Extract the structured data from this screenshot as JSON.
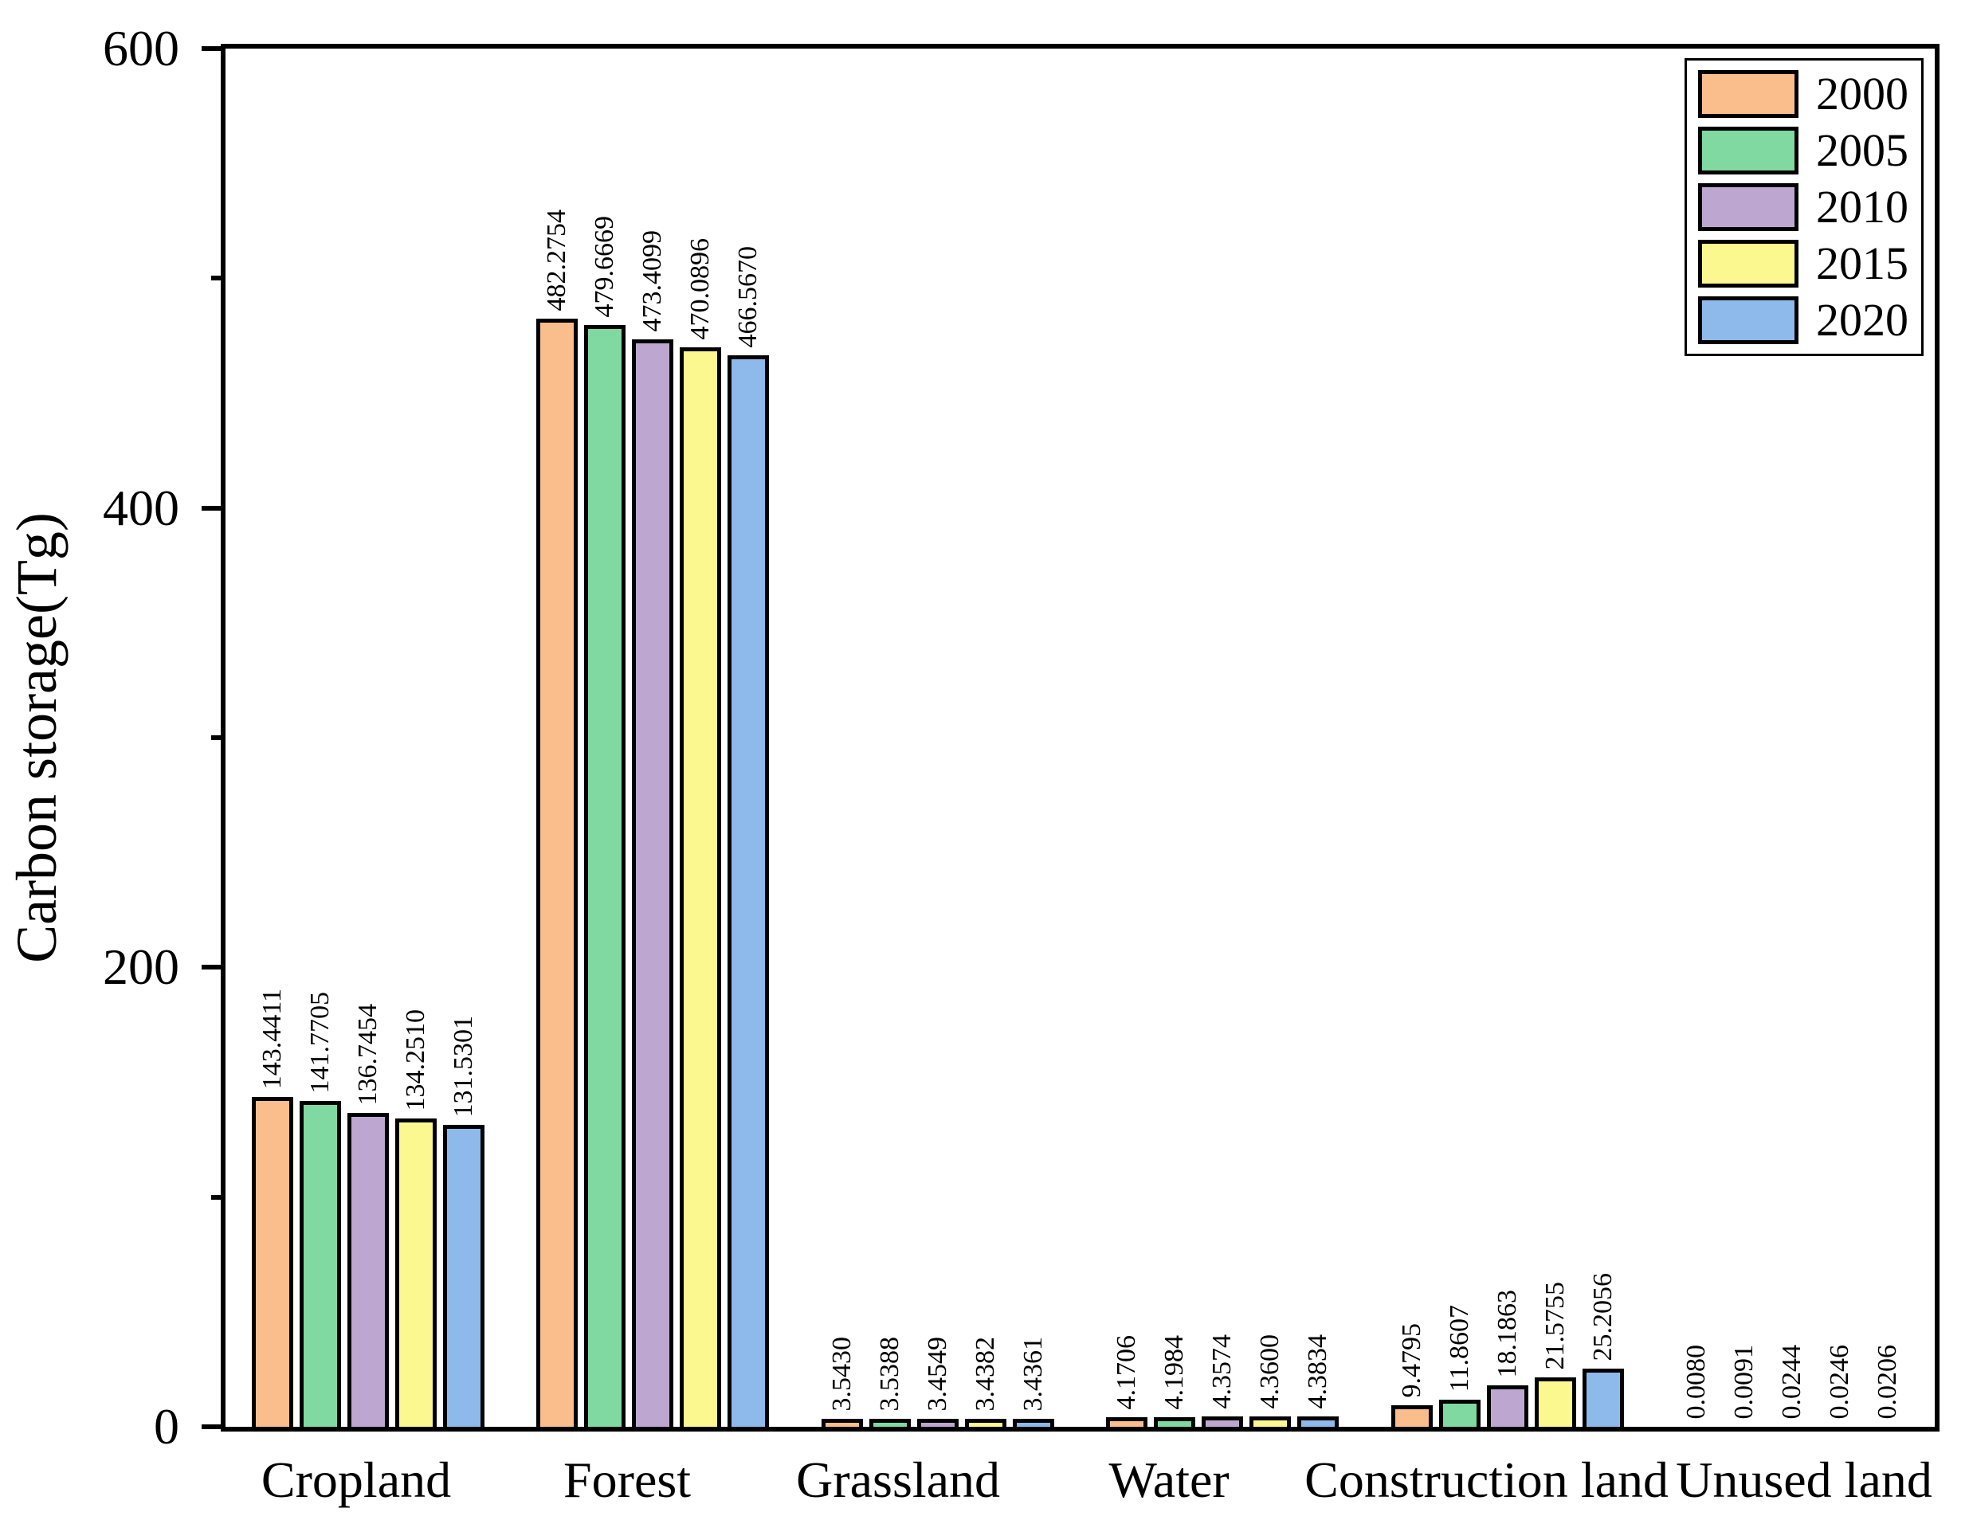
{
  "figure": {
    "background": "#FFFFFF"
  },
  "chart_data": {
    "type": "bar",
    "title": "",
    "ylabel": "Carbon storage(Tg)",
    "xlabel": "",
    "ylim": [
      0,
      600
    ],
    "yticks_major": [
      0,
      200,
      400,
      600
    ],
    "yticks_minor": [
      100,
      300,
      500
    ],
    "grid": false,
    "legend_position": "top-right-inside",
    "bar_outline_color": "#000000",
    "categories": [
      "Cropland",
      "Forest",
      "Grassland",
      "Water",
      "Construction land",
      "Unused land"
    ],
    "series": [
      {
        "name": "2000",
        "color": "#F9BE8B",
        "values": [
          143.4411,
          482.2754,
          3.543,
          4.1706,
          9.4795,
          0.008
        ],
        "labels": [
          "143.4411",
          "482.2754",
          "3.5430",
          "4.1706",
          "9.4795",
          "0.0080"
        ]
      },
      {
        "name": "2005",
        "color": "#7FD9A0",
        "values": [
          141.7705,
          479.6669,
          3.5388,
          4.1984,
          11.8607,
          0.0091
        ],
        "labels": [
          "141.7705",
          "479.6669",
          "3.5388",
          "4.1984",
          "11.8607",
          "0.0091"
        ]
      },
      {
        "name": "2010",
        "color": "#BDA7D0",
        "values": [
          136.7454,
          473.4099,
          3.4549,
          4.3574,
          18.1863,
          0.0244
        ],
        "labels": [
          "136.7454",
          "473.4099",
          "3.4549",
          "4.3574",
          "18.1863",
          "0.0244"
        ]
      },
      {
        "name": "2015",
        "color": "#FBF88F",
        "values": [
          134.251,
          470.0896,
          3.4382,
          4.36,
          21.5755,
          0.0246
        ],
        "labels": [
          "134.2510",
          "470.0896",
          "3.4382",
          "4.3600",
          "21.5755",
          "0.0246"
        ]
      },
      {
        "name": "2020",
        "color": "#8EB9EB",
        "values": [
          131.5301,
          466.567,
          3.4361,
          4.3834,
          25.2056,
          0.0206
        ],
        "labels": [
          "131.5301",
          "466.5670",
          "3.4361",
          "4.3834",
          "25.2056",
          "0.0206"
        ]
      }
    ]
  }
}
